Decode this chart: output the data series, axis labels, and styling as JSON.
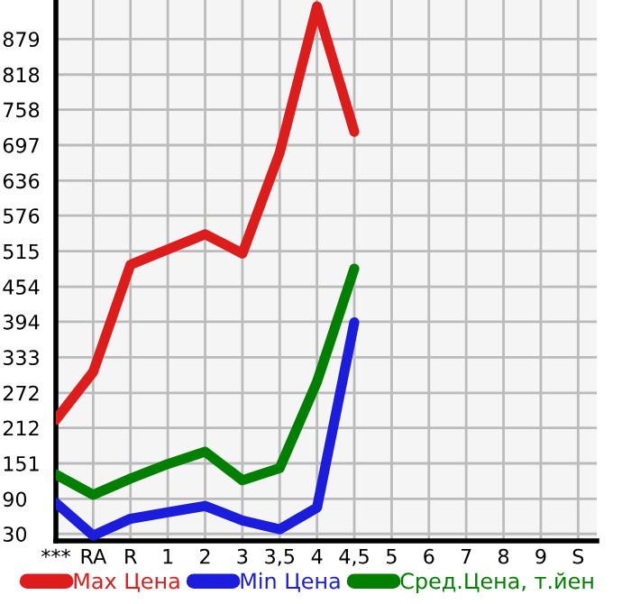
{
  "chart_data": {
    "type": "line",
    "categories": [
      "***",
      "RA",
      "R",
      "1",
      "2",
      "3",
      "3,5",
      "4",
      "4,5",
      "5",
      "6",
      "7",
      "8",
      "9",
      "S"
    ],
    "series": [
      {
        "name": "Max Цена",
        "color": "#dd1c1c",
        "values": [
          226,
          308,
          492,
          518,
          544,
          511,
          684,
          935,
          720,
          null,
          null,
          null,
          null,
          null,
          null
        ]
      },
      {
        "name": "Min Цена",
        "color": "#1c1cdd",
        "values": [
          83,
          27,
          56,
          67,
          78,
          53,
          38,
          75,
          393,
          null,
          null,
          null,
          null,
          null,
          null
        ]
      },
      {
        "name": "Сред.Цена, т.йен",
        "color": "#007f00",
        "values": [
          132,
          97,
          125,
          150,
          171,
          122,
          143,
          291,
          485,
          null,
          null,
          null,
          null,
          null,
          null
        ]
      }
    ],
    "ylim": [
      18,
      946
    ],
    "yticks": [
      30,
      90,
      151,
      212,
      272,
      333,
      394,
      454,
      515,
      576,
      636,
      697,
      758,
      818,
      879
    ],
    "grid": true,
    "legend": "bottom",
    "marker": "none",
    "line_style": "solid"
  }
}
